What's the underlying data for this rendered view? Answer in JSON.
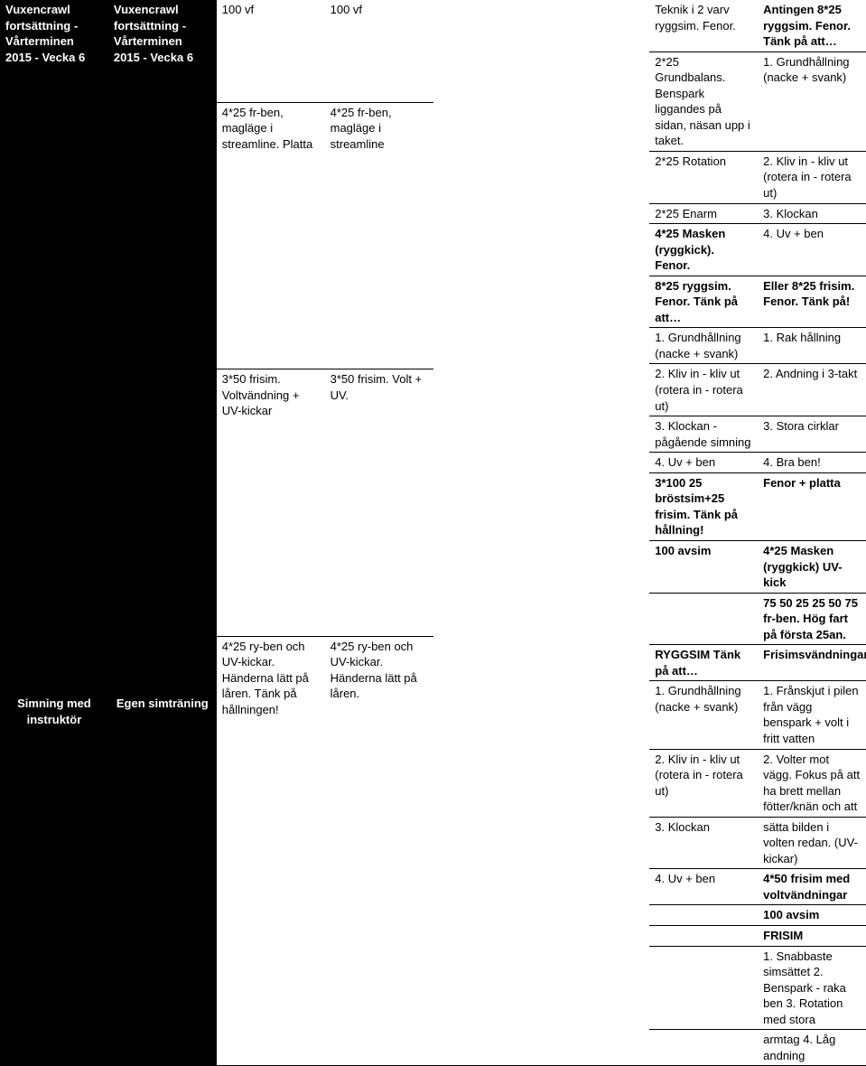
{
  "left": {
    "title": "Vuxencrawl fortsättning - Vårterminen 2015 - Vecka 6",
    "subtitle": "Simning med instruktör",
    "block1": [
      "100 vf",
      "4*25 fr-ben, magläge i streamline. Platta",
      "3*50 frisim. Voltvändning + UV-kickar",
      "4*25 ry-ben och UV-kickar. Händerna lätt på låren. Tänk på hållningen!"
    ],
    "block2": [
      "Teknik i 2 varv ryggsim. Fenor.",
      "2*25 Grundbalans. Benspark liggandes på sidan, näsan upp i taket.",
      "2*25 Rotation",
      "2*25 Enarm",
      "4*25 Masken (ryggkick). Fenor.",
      "8*25 ryggsim. Fenor. Tänk på att…",
      "1. Grundhållning (nacke + svank)",
      "2. Kliv in - kliv ut (rotera in - rotera ut)",
      "3. Klockan - pågående simning",
      "4. Uv + ben",
      "3*100 25 bröstsim+25 frisim. Tänk på hållning!",
      "100 avsim",
      "",
      "RYGGSIM Tänk på att…",
      "1. Grundhållning (nacke + svank)",
      "2. Kliv in - kliv ut (rotera in - rotera ut)",
      "3. Klockan",
      "4. Uv + ben"
    ]
  },
  "right": {
    "title": "Vuxencrawl fortsättning - Vårterminen 2015 - Vecka 6",
    "subtitle": "Egen simträning",
    "block1": [
      "100 vf",
      "4*25 fr-ben, magläge i streamline",
      "3*50 frisim. Volt + UV.",
      "4*25 ry-ben och UV-kickar. Händerna lätt på låren."
    ],
    "block2": [
      "Antingen 8*25 ryggsim. Fenor. Tänk på att…",
      "1. Grundhållning (nacke + svank)",
      "2. Kliv in - kliv ut (rotera in - rotera ut)",
      "3. Klockan",
      "4. Uv + ben",
      "Eller 8*25 frisim. Fenor. Tänk på!",
      "1. Rak hållning",
      "2. Andning i 3-takt",
      "3. Stora cirklar",
      "4. Bra ben!",
      "Fenor + platta",
      "4*25 Masken (ryggkick) UV-kick",
      "75 50 25 25 50 75 fr-ben. Hög fart på första 25an.",
      "Frisimsvändningar",
      "1. Frånskjut i pilen från vägg  benspark + volt i fritt vatten",
      "2. Volter mot vägg. Fokus på att ha brett mellan fötter/knän och att",
      "sätta bilden i volten redan. (UV-kickar)",
      "4*50 frisim med voltvändningar",
      "100 avsim",
      "FRISIM",
      "1. Snabbaste simsättet 2. Benspark - raka ben 3. Rotation med stora",
      "armtag 4. Låg andning"
    ]
  },
  "boldLines": [
    "4*25 Masken (ryggkick). Fenor.",
    "8*25 ryggsim. Fenor. Tänk på att…",
    "3*100 25 bröstsim+25 frisim. Tänk på hållning!",
    "100 avsim",
    "RYGGSIM Tänk på att…",
    "Antingen 8*25 ryggsim. Fenor. Tänk på att…",
    "Eller 8*25 frisim. Fenor. Tänk på!",
    "Fenor + platta",
    "4*25 Masken (ryggkick) UV-kick",
    "75 50 25 25 50 75 fr-ben. Hög fart på första 25an.",
    "Frisimsvändningar",
    "4*50 frisim med voltvändningar",
    "FRISIM"
  ]
}
